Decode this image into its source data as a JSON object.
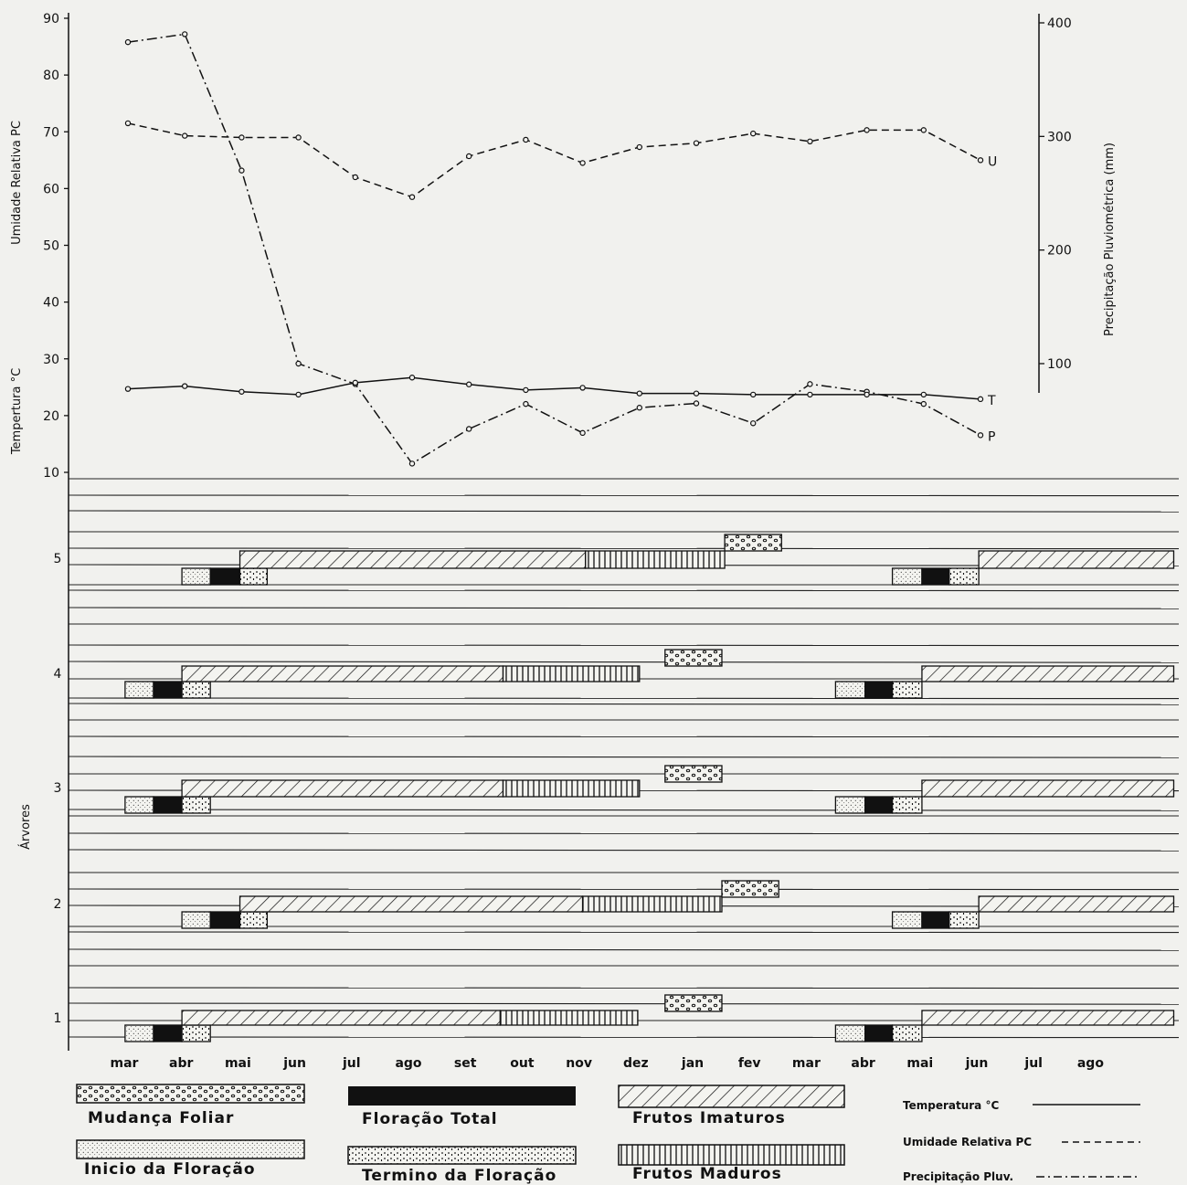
{
  "chart_data": {
    "type": "line",
    "months": [
      "mar",
      "abr",
      "mai",
      "jun",
      "jul",
      "ago",
      "set",
      "out",
      "nov",
      "dez",
      "jan",
      "fev",
      "mar",
      "abr",
      "mai",
      "jun",
      "jul",
      "ago"
    ],
    "left_axis": {
      "humidity_label": "Umidade Relativa PC",
      "temperature_label": "Tempertura °C",
      "ticks": [
        10,
        20,
        30,
        40,
        50,
        60,
        70,
        80,
        90
      ],
      "ylim": [
        10,
        90
      ]
    },
    "right_axis": {
      "label": "Precipitação  Pluviométrica  (mm)",
      "ticks": [
        100,
        200,
        300,
        400
      ],
      "ylim": [
        100,
        400
      ]
    },
    "series": [
      {
        "name": "U",
        "axis": "left",
        "style": "dashed",
        "values": [
          71.5,
          69.3,
          69,
          69,
          62,
          58.5,
          65.7,
          68.6,
          64.5,
          67.3,
          68,
          69.7,
          68.3,
          70.3,
          70.3,
          65
        ]
      },
      {
        "name": "P",
        "axis": "right",
        "style": "dashdot",
        "values": [
          383,
          390,
          270,
          100,
          82,
          12,
          42.5,
          64.5,
          39,
          61.2,
          65,
          47.5,
          82,
          75.3,
          64.5,
          37
        ]
      },
      {
        "name": "T",
        "axis": "left",
        "style": "solid",
        "values": [
          24.7,
          25.2,
          24.2,
          23.7,
          25.8,
          26.7,
          25.5,
          24.5,
          24.9,
          23.9,
          23.9,
          23.7,
          23.7,
          23.7,
          23.7,
          22.9
        ]
      }
    ],
    "phenology": {
      "axis_label": "Árvores",
      "trees": [
        {
          "label": "5",
          "bars": [
            {
              "phase": "inicio",
              "start": 1.95,
              "end": 2.45
            },
            {
              "phase": "total",
              "start": 2.45,
              "end": 2.97
            },
            {
              "phase": "termino",
              "start": 2.97,
              "end": 3.45
            },
            {
              "phase": "imaturos",
              "start": 2.97,
              "end": 9.05
            },
            {
              "phase": "maduros",
              "start": 9.05,
              "end": 11.5
            },
            {
              "phase": "mudanca",
              "start": 11.5,
              "end": 12.5
            },
            {
              "phase": "inicio",
              "start": 14.45,
              "end": 14.97
            },
            {
              "phase": "total",
              "start": 14.97,
              "end": 15.45
            },
            {
              "phase": "termino",
              "start": 15.45,
              "end": 15.97
            },
            {
              "phase": "imaturos",
              "start": 15.97,
              "end": 19.4
            }
          ]
        },
        {
          "label": "4",
          "bars": [
            {
              "phase": "inicio",
              "start": 0.95,
              "end": 1.45
            },
            {
              "phase": "total",
              "start": 1.45,
              "end": 1.95
            },
            {
              "phase": "termino",
              "start": 1.95,
              "end": 2.45
            },
            {
              "phase": "imaturos",
              "start": 1.95,
              "end": 7.6
            },
            {
              "phase": "maduros",
              "start": 7.6,
              "end": 10.0
            },
            {
              "phase": "mudanca",
              "start": 10.45,
              "end": 11.45
            },
            {
              "phase": "inicio",
              "start": 13.45,
              "end": 13.97
            },
            {
              "phase": "total",
              "start": 13.97,
              "end": 14.45
            },
            {
              "phase": "termino",
              "start": 14.45,
              "end": 14.97
            },
            {
              "phase": "imaturos",
              "start": 14.97,
              "end": 19.4
            }
          ]
        },
        {
          "label": "3",
          "bars": [
            {
              "phase": "inicio",
              "start": 0.95,
              "end": 1.45
            },
            {
              "phase": "total",
              "start": 1.45,
              "end": 1.95
            },
            {
              "phase": "termino",
              "start": 1.95,
              "end": 2.45
            },
            {
              "phase": "imaturos",
              "start": 1.95,
              "end": 7.6
            },
            {
              "phase": "maduros",
              "start": 7.6,
              "end": 10.0
            },
            {
              "phase": "mudanca",
              "start": 10.45,
              "end": 11.45
            },
            {
              "phase": "inicio",
              "start": 13.45,
              "end": 13.97
            },
            {
              "phase": "total",
              "start": 13.97,
              "end": 14.45
            },
            {
              "phase": "termino",
              "start": 14.45,
              "end": 14.97
            },
            {
              "phase": "imaturos",
              "start": 14.97,
              "end": 19.4
            }
          ]
        },
        {
          "label": "2",
          "bars": [
            {
              "phase": "inicio",
              "start": 1.95,
              "end": 2.45
            },
            {
              "phase": "total",
              "start": 2.45,
              "end": 2.97
            },
            {
              "phase": "termino",
              "start": 2.97,
              "end": 3.45
            },
            {
              "phase": "imaturos",
              "start": 2.97,
              "end": 9.0
            },
            {
              "phase": "maduros",
              "start": 9.0,
              "end": 11.45
            },
            {
              "phase": "mudanca",
              "start": 11.45,
              "end": 12.45
            },
            {
              "phase": "inicio",
              "start": 14.45,
              "end": 14.97
            },
            {
              "phase": "total",
              "start": 14.97,
              "end": 15.45
            },
            {
              "phase": "termino",
              "start": 15.45,
              "end": 15.97
            },
            {
              "phase": "imaturos",
              "start": 15.97,
              "end": 19.4
            }
          ]
        },
        {
          "label": "1",
          "bars": [
            {
              "phase": "inicio",
              "start": 0.95,
              "end": 1.45
            },
            {
              "phase": "total",
              "start": 1.45,
              "end": 1.95
            },
            {
              "phase": "termino",
              "start": 1.95,
              "end": 2.45
            },
            {
              "phase": "imaturos",
              "start": 1.95,
              "end": 7.55
            },
            {
              "phase": "maduros",
              "start": 7.55,
              "end": 9.97
            },
            {
              "phase": "mudanca",
              "start": 10.45,
              "end": 11.45
            },
            {
              "phase": "inicio",
              "start": 13.45,
              "end": 13.97
            },
            {
              "phase": "total",
              "start": 13.97,
              "end": 14.45
            },
            {
              "phase": "termino",
              "start": 14.45,
              "end": 14.97
            },
            {
              "phase": "imaturos",
              "start": 14.97,
              "end": 19.4
            }
          ]
        }
      ]
    },
    "legend": {
      "mudanca": "Mudança   Foliar",
      "inicio": "Inicio  da  Floração",
      "total": "Floração  Total",
      "termino": "Termino  da  Floração",
      "imaturos": "Frutos   Imaturos",
      "maduros": "Frutos      Maduros",
      "temperatura": "Temperatura °C",
      "umidade": "Umidade  Relativa  PC",
      "precipitacao": "Precipitação  Pluv."
    }
  }
}
